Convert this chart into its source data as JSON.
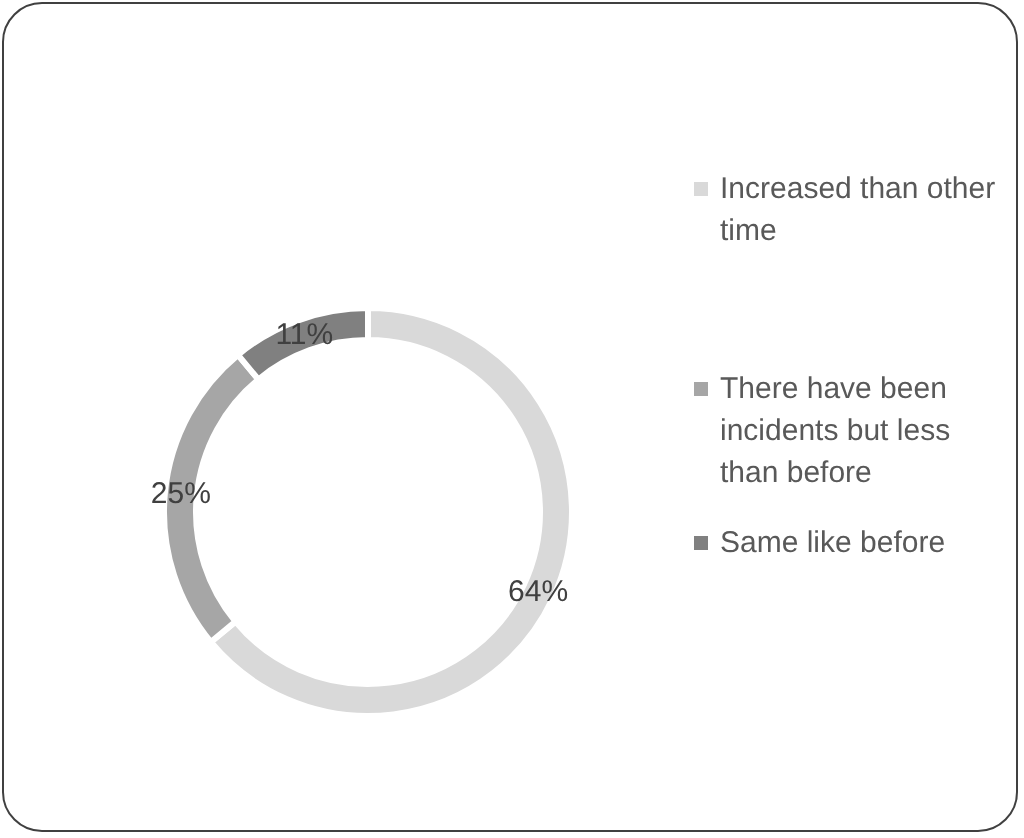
{
  "chart_data": {
    "type": "donut",
    "categories": [
      "Increased than other time",
      "There have been incidents but less than before",
      "Same like before"
    ],
    "values": [
      64,
      25,
      11
    ],
    "value_labels": [
      "64%",
      "25%",
      "11%"
    ],
    "colors": [
      "#d9d9d9",
      "#a6a6a6",
      "#808080"
    ],
    "legend": "right"
  }
}
